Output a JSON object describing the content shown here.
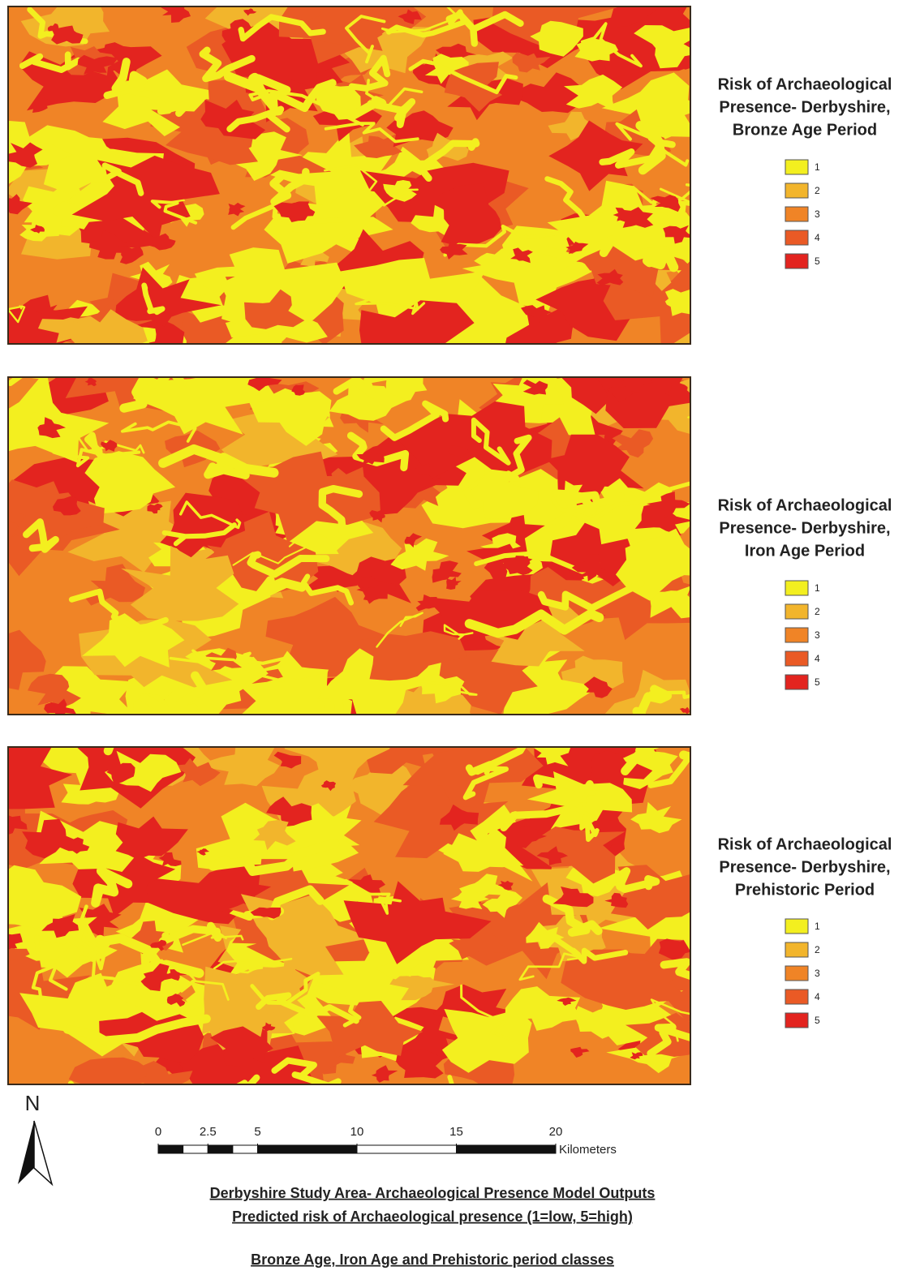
{
  "maps": [
    {
      "title": [
        "Risk of Archaeological",
        "Presence- Derbyshire,",
        "Bronze Age Period"
      ],
      "legend": [
        "1",
        "2",
        "3",
        "4",
        "5"
      ]
    },
    {
      "title": [
        "Risk of Archaeological",
        "Presence- Derbyshire,",
        "Iron Age Period"
      ],
      "legend": [
        "1",
        "2",
        "3",
        "4",
        "5"
      ]
    },
    {
      "title": [
        "Risk of Archaeological",
        "Presence- Derbyshire,",
        "Prehistoric Period"
      ],
      "legend": [
        "1",
        "2",
        "3",
        "4",
        "5"
      ]
    }
  ],
  "class_colors": [
    "#f3ef1f",
    "#f2b52c",
    "#f08426",
    "#ea5a25",
    "#e3241f"
  ],
  "north": "N",
  "scale": {
    "ticks": [
      0,
      2.5,
      5,
      10,
      15,
      20
    ],
    "unit": "Kilometers"
  },
  "footer": {
    "lines": [
      "Derbyshire Study Area- Archaeological Presence Model Outputs",
      "Predicted risk of Archaeological presence (1=low, 5=high)"
    ],
    "subtitle": "Bronze Age, Iron Age and Prehistoric period classes"
  }
}
